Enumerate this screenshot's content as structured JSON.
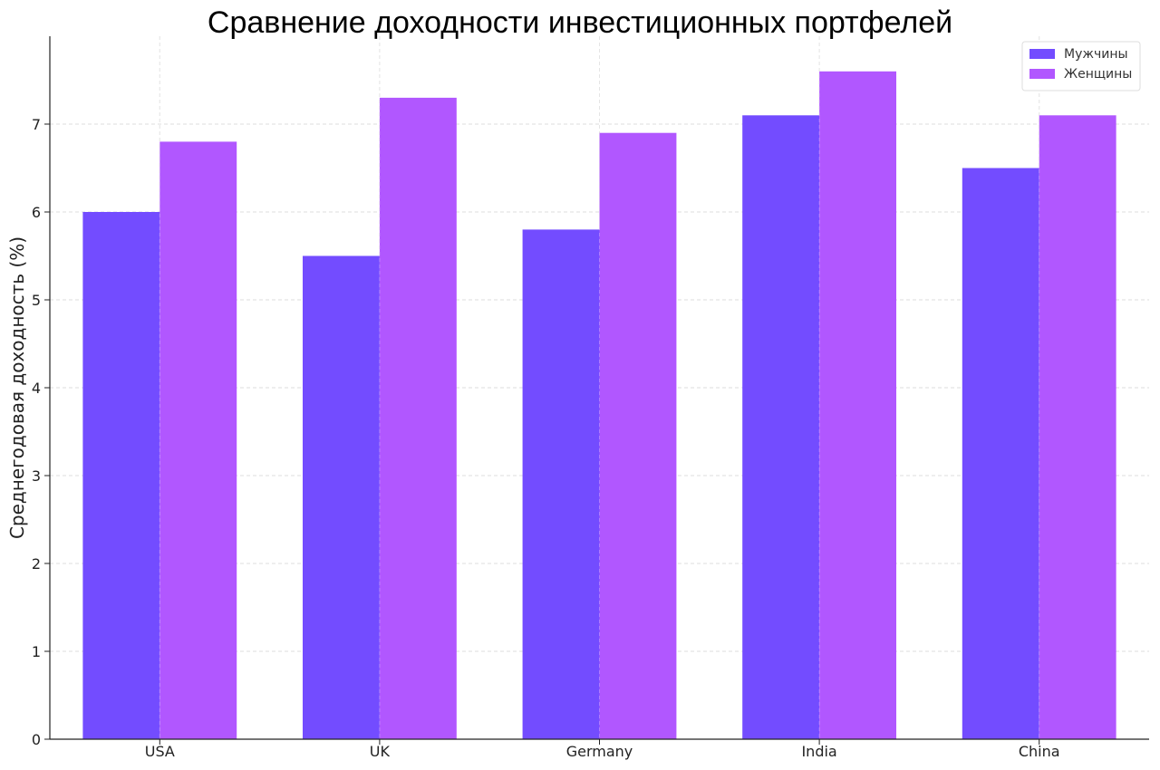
{
  "chart_data": {
    "type": "bar",
    "title": "Сравнение доходности инвестиционных портфелей",
    "xlabel": "",
    "ylabel": "Среднегодовая доходность (%)",
    "categories": [
      "USA",
      "UK",
      "Germany",
      "India",
      "China"
    ],
    "series": [
      {
        "name": "Мужчины",
        "values": [
          6.0,
          5.5,
          5.8,
          7.1,
          6.5
        ],
        "color": "#734cff"
      },
      {
        "name": "Женщины",
        "values": [
          6.8,
          7.3,
          6.9,
          7.6,
          7.1
        ],
        "color": "#b157ff"
      }
    ],
    "ylim": [
      0,
      8
    ],
    "yticks": [
      0,
      1,
      2,
      3,
      4,
      5,
      6,
      7
    ],
    "grid": true,
    "legend_position": "top-right"
  }
}
